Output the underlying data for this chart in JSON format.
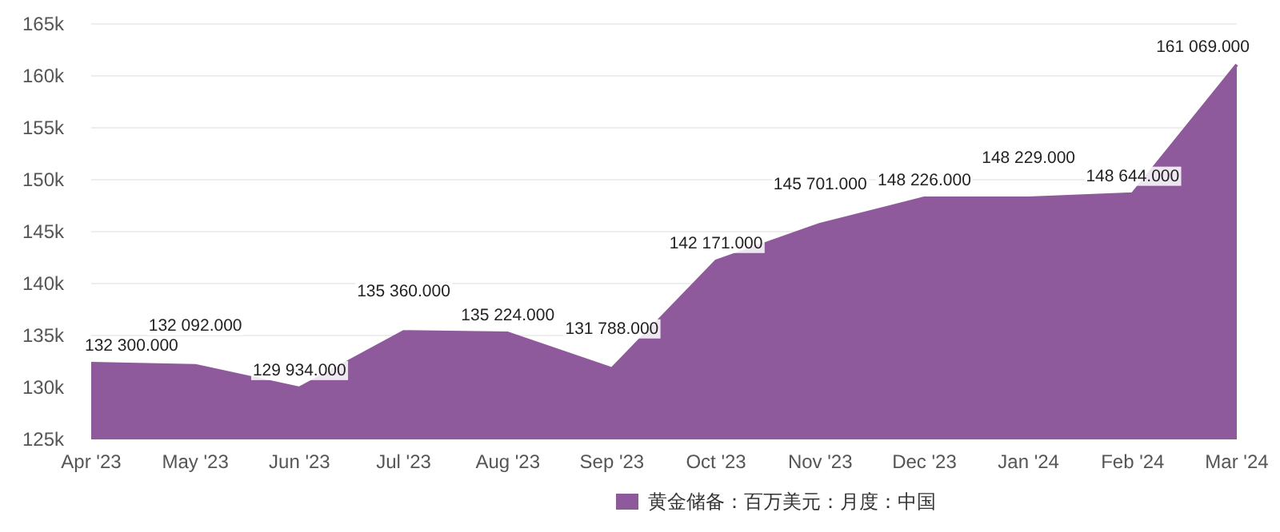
{
  "chart_data": {
    "type": "area",
    "categories": [
      "Apr '23",
      "May '23",
      "Jun '23",
      "Jul '23",
      "Aug '23",
      "Sep '23",
      "Oct '23",
      "Nov '23",
      "Dec '23",
      "Jan '24",
      "Feb '24",
      "Mar '24"
    ],
    "series": [
      {
        "name": "黄金储备：百万美元：月度：中国",
        "color": "#8e5a9b",
        "values": [
          132300,
          132092,
          129934,
          135360,
          135224,
          131788,
          142171,
          145701,
          148226,
          148229,
          148644,
          161069
        ],
        "value_labels": [
          "132 300.000",
          "132 092.000",
          "129 934.000",
          "135 360.000",
          "135 224.000",
          "131 788.000",
          "142 171.000",
          "145 701.000",
          "148 226.000",
          "148 229.000",
          "148 644.000",
          "161 069.000"
        ]
      }
    ],
    "ylim": [
      125000,
      165000
    ],
    "yticks": [
      {
        "value": 125000,
        "label": "125k"
      },
      {
        "value": 130000,
        "label": "130k"
      },
      {
        "value": 135000,
        "label": "135k"
      },
      {
        "value": 140000,
        "label": "140k"
      },
      {
        "value": 145000,
        "label": "145k"
      },
      {
        "value": 150000,
        "label": "150k"
      },
      {
        "value": 155000,
        "label": "155k"
      },
      {
        "value": 160000,
        "label": "160k"
      },
      {
        "value": 165000,
        "label": "165k"
      }
    ],
    "grid": "y",
    "legend": "bottom"
  }
}
